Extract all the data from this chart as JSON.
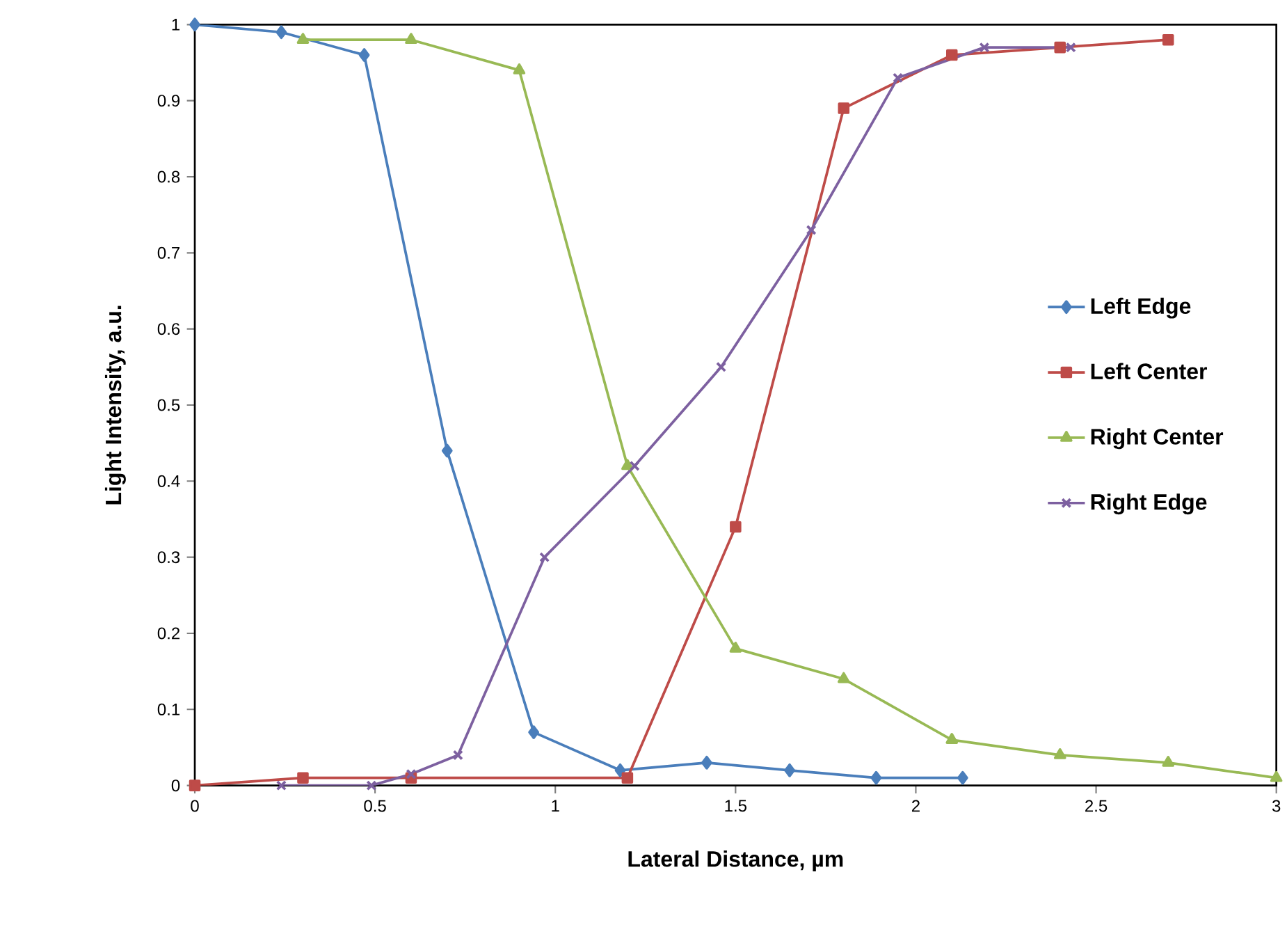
{
  "chart_data": {
    "type": "line",
    "xlabel": "Lateral Distance, µm",
    "ylabel": "Light Intensity, a.u.",
    "xlim": [
      0,
      3
    ],
    "xticks": [
      0,
      0.5,
      1,
      1.5,
      2,
      2.5,
      3
    ],
    "ylim": [
      0,
      1
    ],
    "yticks": [
      0,
      0.1,
      0.2,
      0.3,
      0.4,
      0.5,
      0.6,
      0.7,
      0.8,
      0.9,
      1
    ],
    "grid": false,
    "legend": "right",
    "line_style": "solid",
    "series": [
      {
        "name": "Left Edge",
        "color": "#4a7ebb",
        "marker": "diamond",
        "x": [
          0,
          0.24,
          0.47,
          0.7,
          0.94,
          1.18,
          1.42,
          1.65,
          1.89,
          2.13
        ],
        "values": [
          1,
          0.99,
          0.96,
          0.44,
          0.07,
          0.02,
          0.03,
          0.02,
          0.01,
          0.01
        ]
      },
      {
        "name": "Left Center",
        "color": "#be4b48",
        "marker": "square",
        "x": [
          0,
          0.3,
          0.6,
          1.2,
          1.5,
          1.8,
          2.1,
          2.4,
          2.7
        ],
        "values": [
          0,
          0.01,
          0.01,
          0.01,
          0.34,
          0.89,
          0.96,
          0.97,
          0.98
        ]
      },
      {
        "name": "Right Center",
        "color": "#98b954",
        "marker": "triangle",
        "x": [
          0.3,
          0.6,
          0.9,
          1.2,
          1.5,
          1.8,
          2.1,
          2.4,
          2.7,
          3.0
        ],
        "values": [
          0.98,
          0.98,
          0.94,
          0.42,
          0.18,
          0.14,
          0.06,
          0.04,
          0.03,
          0.01
        ]
      },
      {
        "name": "Right Edge",
        "color": "#7d60a0",
        "marker": "cross",
        "x": [
          0.24,
          0.49,
          0.6,
          0.73,
          0.97,
          1.22,
          1.46,
          1.71,
          1.95,
          2.19,
          2.43
        ],
        "values": [
          0,
          0,
          0.015,
          0.04,
          0.3,
          0.42,
          0.55,
          0.73,
          0.93,
          0.97,
          0.97
        ]
      }
    ]
  }
}
